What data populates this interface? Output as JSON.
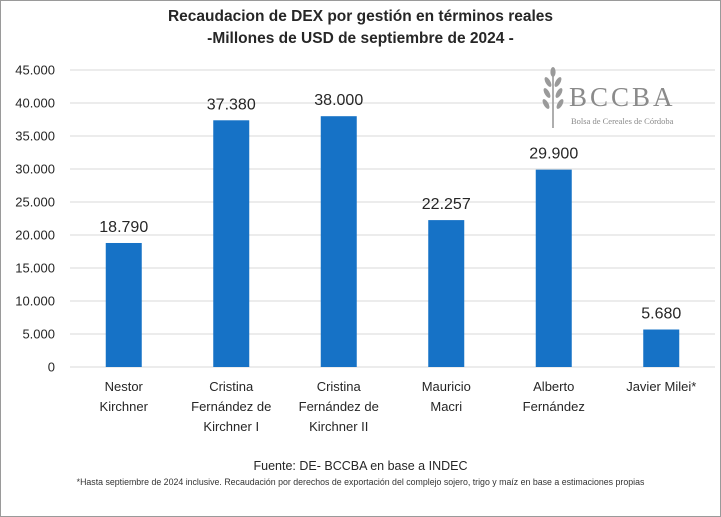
{
  "title_line1": "Recaudacion de DEX por gestión en términos reales",
  "title_line2": "-Millones de USD de septiembre de 2024 -",
  "logo": {
    "name": "BCCBA",
    "subtitle": "Bolsa de Cereales de Córdoba",
    "icon": "wheat-icon"
  },
  "source": "Fuente: DE- BCCBA en base a INDEC",
  "footnote": "*Hasta septiembre de 2024 inclusive. Recaudación por derechos de exportación del complejo sojero, trigo y maíz en base a estimaciones propias",
  "colors": {
    "bar": "#1672C6",
    "grid": "#d9d9d9",
    "text": "#262626"
  },
  "chart_data": {
    "type": "bar",
    "categories": [
      [
        "Nestor",
        "Kirchner"
      ],
      [
        "Cristina",
        "Fernández de",
        "Kirchner I"
      ],
      [
        "Cristina",
        "Fernández de",
        "Kirchner II"
      ],
      [
        "Mauricio",
        "Macri"
      ],
      [
        "Alberto",
        "Fernández"
      ],
      [
        "Javier Milei*"
      ]
    ],
    "values": [
      18790,
      37380,
      38000,
      22257,
      29900,
      5680
    ],
    "value_labels": [
      "18.790",
      "37.380",
      "38.000",
      "22.257",
      "29.900",
      "5.680"
    ],
    "yticks": [
      0,
      5000,
      10000,
      15000,
      20000,
      25000,
      30000,
      35000,
      40000,
      45000
    ],
    "ytick_labels": [
      "0",
      "5.000",
      "10.000",
      "15.000",
      "20.000",
      "25.000",
      "30.000",
      "35.000",
      "40.000",
      "45.000"
    ],
    "ylim": [
      0,
      45000
    ],
    "grid": true,
    "legend": "none"
  }
}
